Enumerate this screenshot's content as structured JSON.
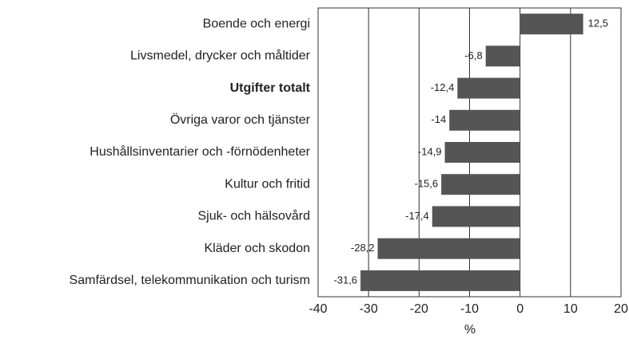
{
  "chart_data": {
    "type": "bar",
    "orientation": "horizontal",
    "categories": [
      "Boende och energi",
      "Livsmedel, drycker och måltider",
      "Utgifter totalt",
      "Övriga varor och tjänster",
      "Hushållsinventarier och -förnödenheter",
      "Kultur och fritid",
      "Sjuk- och hälsovård",
      "Kläder och skodon",
      "Samfärdsel, telekommunikation och turism"
    ],
    "values": [
      12.5,
      -6.8,
      -12.4,
      -14,
      -14.9,
      -15.6,
      -17.4,
      -28.2,
      -31.6
    ],
    "value_labels": [
      "12,5",
      "-6,8",
      "-12,4",
      "-14",
      "-14,9",
      "-15,6",
      "-17,4",
      "-28,2",
      "-31,6"
    ],
    "bold_category": 2,
    "color": "#555555",
    "xlim": [
      -40,
      20
    ],
    "xticks": [
      -40,
      -30,
      -20,
      -10,
      0,
      10,
      20
    ],
    "xlabel": "%",
    "grid": true
  }
}
